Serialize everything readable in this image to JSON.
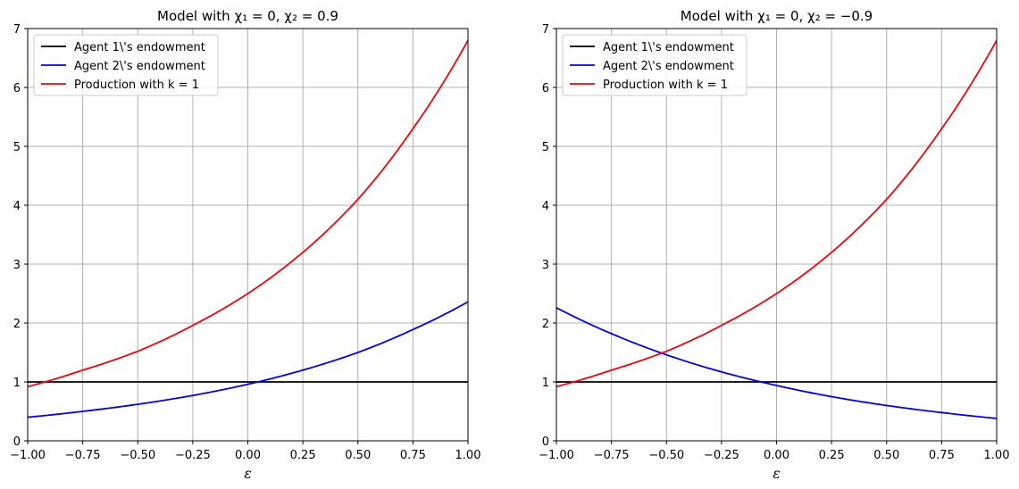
{
  "chart_data": [
    {
      "type": "line",
      "title": "Model with χ₁ = 0, χ₂ = 0.9",
      "xlabel": "ε",
      "ylabel": "",
      "xlim": [
        -1.0,
        1.0
      ],
      "ylim": [
        0,
        7
      ],
      "xticks": [
        "−1.00",
        "−0.75",
        "−0.50",
        "−0.25",
        "0.00",
        "0.25",
        "0.50",
        "0.75",
        "1.00"
      ],
      "yticks": [
        "0",
        "1",
        "2",
        "3",
        "4",
        "5",
        "6",
        "7"
      ],
      "grid": true,
      "legend": "top-left",
      "series": [
        {
          "name": "Agent 1\\'s endowment",
          "color": "#000000",
          "x": [
            -1.0,
            -0.75,
            -0.5,
            -0.25,
            0.0,
            0.25,
            0.5,
            0.75,
            1.0
          ],
          "y": [
            1.0,
            1.0,
            1.0,
            1.0,
            1.0,
            1.0,
            1.0,
            1.0,
            1.0
          ]
        },
        {
          "name": "Agent 2\\'s endowment",
          "color": "#0000ff",
          "x": [
            -1.0,
            -0.75,
            -0.5,
            -0.25,
            0.0,
            0.25,
            0.5,
            0.75,
            1.0
          ],
          "y": [
            0.4,
            0.5,
            0.62,
            0.77,
            0.96,
            1.2,
            1.5,
            1.89,
            2.36
          ]
        },
        {
          "name": "Production with k = 1",
          "color": "#ff0000",
          "x": [
            -1.0,
            -0.75,
            -0.5,
            -0.25,
            0.0,
            0.25,
            0.5,
            0.75,
            1.0
          ],
          "y": [
            0.92,
            1.2,
            1.52,
            1.96,
            2.5,
            3.2,
            4.1,
            5.3,
            6.8
          ]
        }
      ]
    },
    {
      "type": "line",
      "title": "Model with χ₁ = 0, χ₂ = −0.9",
      "xlabel": "ε",
      "ylabel": "",
      "xlim": [
        -1.0,
        1.0
      ],
      "ylim": [
        0,
        7
      ],
      "xticks": [
        "−1.00",
        "−0.75",
        "−0.50",
        "−0.25",
        "0.00",
        "0.25",
        "0.50",
        "0.75",
        "1.00"
      ],
      "yticks": [
        "0",
        "1",
        "2",
        "3",
        "4",
        "5",
        "6",
        "7"
      ],
      "grid": true,
      "legend": "top-left",
      "series": [
        {
          "name": "Agent 1\\'s endowment",
          "color": "#000000",
          "x": [
            -1.0,
            -0.75,
            -0.5,
            -0.25,
            0.0,
            0.25,
            0.5,
            0.75,
            1.0
          ],
          "y": [
            1.0,
            1.0,
            1.0,
            1.0,
            1.0,
            1.0,
            1.0,
            1.0,
            1.0
          ]
        },
        {
          "name": "Agent 2\\'s endowment",
          "color": "#0000ff",
          "x": [
            -1.0,
            -0.75,
            -0.5,
            -0.25,
            0.0,
            0.25,
            0.5,
            0.75,
            1.0
          ],
          "y": [
            2.26,
            1.82,
            1.46,
            1.17,
            0.94,
            0.75,
            0.6,
            0.48,
            0.38
          ]
        },
        {
          "name": "Production with k = 1",
          "color": "#ff0000",
          "x": [
            -1.0,
            -0.75,
            -0.5,
            -0.25,
            0.0,
            0.25,
            0.5,
            0.75,
            1.0
          ],
          "y": [
            0.92,
            1.2,
            1.52,
            1.96,
            2.5,
            3.2,
            4.1,
            5.3,
            6.8
          ]
        }
      ]
    }
  ]
}
